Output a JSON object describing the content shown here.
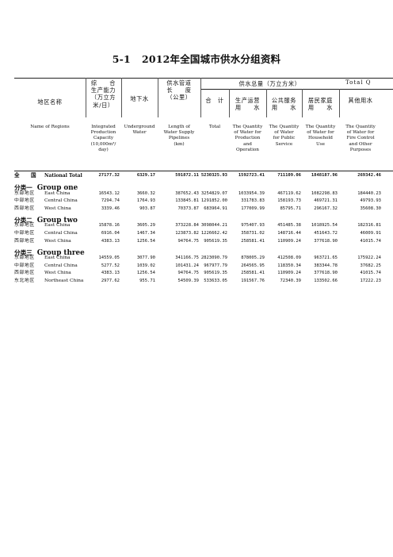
{
  "title": {
    "number": "5-1",
    "text": "2012年全国城市供水分组资料"
  },
  "header": {
    "region_cn": "地区名称",
    "region_en": "Name of Regions",
    "capacity_cn": [
      "综　　合",
      "生产能力",
      "（万立方",
      "米/日）"
    ],
    "capacity_en": [
      "Integrated",
      "Production",
      "Capacity",
      "(10,000m³/",
      "day)"
    ],
    "underground_cn": "地下水",
    "underground_en": [
      "Underground",
      "Water"
    ],
    "pipe_cn": [
      "供水管道",
      "长　　度",
      "（公里）"
    ],
    "pipe_en": [
      "Length of",
      "Water Supply",
      "Pipelines",
      "(km)"
    ],
    "total_supply_cn": "供水总量（万立方米）",
    "total_supply_en": "Total Q",
    "total_cn": "合　计",
    "total_en": "Total",
    "production_cn": [
      "生产运营",
      "用　　水"
    ],
    "production_en": [
      "The Quantity",
      "of Water for",
      "Production",
      "and",
      "Operation"
    ],
    "public_cn": [
      "公共服务",
      "用　　水"
    ],
    "public_en": [
      "The Quantity",
      "of Water",
      "for Public",
      "Service"
    ],
    "household_cn": [
      "居民家庭",
      "用　　水"
    ],
    "household_en": [
      "The Quantity",
      "of Water for",
      "Household",
      "Use"
    ],
    "other_cn": "其他用水",
    "other_en": [
      "The Quantity",
      "of Water for",
      "Fire Control",
      "and Other",
      "Purposes"
    ]
  },
  "national": {
    "cn": "全　　国",
    "en": "National Total",
    "values": [
      "27177.32",
      "6329.17",
      "591872.11",
      "5230325.93",
      "1592723.41",
      "711109.06",
      "1848187.96",
      "269342.46"
    ]
  },
  "groups": [
    {
      "cn": "分类一",
      "en": "Group one",
      "rows": [
        {
          "cn": "东部地区",
          "en": "East China",
          "values": [
            "16543.12",
            "3660.32",
            "387652.43",
            "3254829.07",
            "1033954.39",
            "467119.62",
            "1082298.83",
            "184440.23"
          ]
        },
        {
          "cn": "中部地区",
          "en": "Central China",
          "values": [
            "7294.74",
            "1764.93",
            "133845.81",
            "1291852.00",
            "331783.83",
            "158193.73",
            "469721.31",
            "49793.93"
          ]
        },
        {
          "cn": "西部地区",
          "en": "West China",
          "values": [
            "3339.46",
            "903.87",
            "70373.87",
            "683964.91",
            "177009.99",
            "85795.71",
            "296167.32",
            "35608.30"
          ]
        }
      ]
    },
    {
      "cn": "分类二",
      "en": "Group two",
      "rows": [
        {
          "cn": "东部地区",
          "en": "East China",
          "values": [
            "15878.16",
            "3605.29",
            "373228.84",
            "3098044.21",
            "975407.93",
            "451485.38",
            "1018925.54",
            "182316.81"
          ]
        },
        {
          "cn": "中部地区",
          "en": "Central China",
          "values": [
            "6916.04",
            "1467.34",
            "123873.82",
            "1226662.42",
            "358731.02",
            "148716.44",
            "451643.72",
            "46009.91"
          ]
        },
        {
          "cn": "西部地区",
          "en": "West China",
          "values": [
            "4383.13",
            "1256.54",
            "94764.75",
            "905619.35",
            "258581.41",
            "110909.24",
            "377618.90",
            "41015.74"
          ]
        }
      ]
    },
    {
      "cn": "分类三",
      "en": "Group three",
      "rows": [
        {
          "cn": "东部地区",
          "en": "East China",
          "values": [
            "14559.05",
            "3077.90",
            "341166.75",
            "2823090.79",
            "878005.29",
            "412508.09",
            "963721.65",
            "175922.24"
          ]
        },
        {
          "cn": "中部地区",
          "en": "Central China",
          "values": [
            "5277.52",
            "1039.02",
            "101431.24",
            "967977.79",
            "264565.95",
            "118350.34",
            "383344.78",
            "37682.25"
          ]
        },
        {
          "cn": "西部地区",
          "en": "West China",
          "values": [
            "4383.13",
            "1256.54",
            "94764.75",
            "905619.35",
            "258581.41",
            "110909.24",
            "377618.90",
            "41015.74"
          ]
        },
        {
          "cn": "东北地区",
          "en": "Northeast China",
          "values": [
            "2977.62",
            "955.71",
            "54509.39",
            "533633.05",
            "191567.76",
            "72340.39",
            "133502.66",
            "17222.23"
          ]
        }
      ]
    }
  ]
}
